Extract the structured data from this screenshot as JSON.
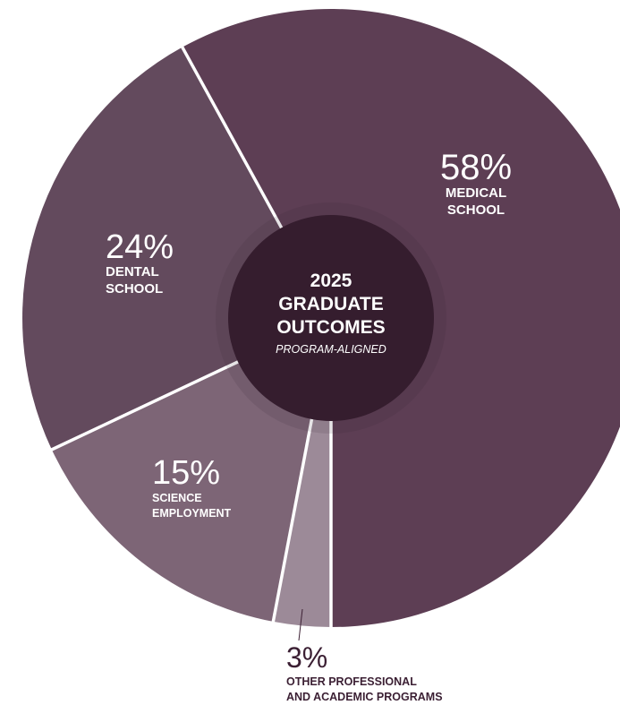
{
  "chart_data": {
    "type": "pie",
    "title": "2025 GRADUATE OUTCOMES",
    "subtitle": "PROGRAM-ALIGNED",
    "slices": [
      {
        "label_lines": [
          "MEDICAL",
          "SCHOOL"
        ],
        "value": 58,
        "display": "58%",
        "color": "#5d3e54",
        "text_color": "#ffffff"
      },
      {
        "label_lines": [
          "OTHER PROFESSIONAL",
          "AND ACADEMIC PROGRAMS"
        ],
        "value": 3,
        "display": "3%",
        "color": "#9c8a98",
        "text_color": "#3b1f33"
      },
      {
        "label_lines": [
          "SCIENCE",
          "EMPLOYMENT"
        ],
        "value": 15,
        "display": "15%",
        "color": "#7d6576",
        "text_color": "#ffffff"
      },
      {
        "label_lines": [
          "DENTAL",
          "SCHOOL"
        ],
        "value": 24,
        "display": "24%",
        "color": "#634a5d",
        "text_color": "#ffffff"
      }
    ],
    "center_title_lines": [
      "2025",
      "GRADUATE",
      "OUTCOMES"
    ],
    "center_color": "#351d2e",
    "separator_color": "#ffffff"
  }
}
